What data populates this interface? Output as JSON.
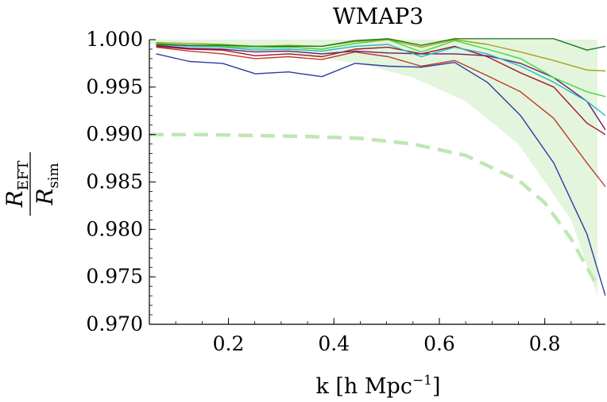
{
  "chart_data": {
    "type": "line",
    "title": "WMAP3",
    "xlabel_main": "k [h Mpc",
    "xlabel_sup": "−1",
    "xlabel_close": "]",
    "ylabel_num_main": "R",
    "ylabel_num_sub": "EFT",
    "ylabel_den_main": "R",
    "ylabel_den_sub": "sim",
    "xlim": [
      0.05,
      0.915
    ],
    "ylim": [
      0.97,
      1.0
    ],
    "x_ticks": [
      0.2,
      0.4,
      0.6,
      0.8
    ],
    "x_tick_labels": [
      "0.2",
      "0.4",
      "0.6",
      "0.8"
    ],
    "y_ticks": [
      0.97,
      0.975,
      0.98,
      0.985,
      0.99,
      0.995,
      1.0
    ],
    "y_tick_labels": [
      "0.970",
      "0.975",
      "0.980",
      "0.985",
      "0.990",
      "0.995",
      "1.000"
    ],
    "band": {
      "color": "#e3f5dd",
      "x": [
        0.05,
        0.25,
        0.45,
        0.55,
        0.65,
        0.75,
        0.85,
        0.9
      ],
      "upper": [
        1.0,
        1.0,
        1.0,
        1.0,
        1.0,
        1.0,
        1.0,
        1.0
      ],
      "lower": [
        0.9995,
        0.999,
        0.9975,
        0.996,
        0.9935,
        0.989,
        0.981,
        0.973
      ]
    },
    "dashed_curve": {
      "color": "#bfe6b4",
      "x": [
        0.05,
        0.15,
        0.25,
        0.35,
        0.45,
        0.55,
        0.65,
        0.75,
        0.8,
        0.85,
        0.9
      ],
      "y": [
        0.99,
        0.99,
        0.9899,
        0.9898,
        0.9896,
        0.989,
        0.9878,
        0.9852,
        0.9828,
        0.979,
        0.974
      ]
    },
    "series": [
      {
        "color": "#2f3a9e",
        "x": [
          0.063,
          0.126,
          0.189,
          0.251,
          0.314,
          0.377,
          0.44,
          0.503,
          0.566,
          0.629,
          0.691,
          0.754,
          0.817,
          0.88,
          0.915
        ],
        "y": [
          0.9985,
          0.9977,
          0.9975,
          0.9964,
          0.9966,
          0.9961,
          0.9975,
          0.9972,
          0.9971,
          0.9976,
          0.9955,
          0.992,
          0.987,
          0.9795,
          0.973
        ]
      },
      {
        "color": "#c0392b",
        "x": [
          0.063,
          0.126,
          0.189,
          0.251,
          0.314,
          0.377,
          0.44,
          0.503,
          0.566,
          0.629,
          0.691,
          0.754,
          0.817,
          0.88,
          0.915
        ],
        "y": [
          0.9992,
          0.9988,
          0.9985,
          0.998,
          0.9982,
          0.9979,
          0.9987,
          0.9982,
          0.9972,
          0.9978,
          0.9962,
          0.9945,
          0.9917,
          0.987,
          0.9845
        ]
      },
      {
        "color": "#a3141c",
        "x": [
          0.063,
          0.126,
          0.189,
          0.251,
          0.314,
          0.377,
          0.44,
          0.503,
          0.566,
          0.629,
          0.691,
          0.754,
          0.817,
          0.88,
          0.915
        ],
        "y": [
          0.9993,
          0.999,
          0.9989,
          0.9983,
          0.9985,
          0.9982,
          0.999,
          0.9992,
          0.9985,
          0.9993,
          0.9982,
          0.9965,
          0.995,
          0.9912,
          0.99
        ]
      },
      {
        "color": "#6a1b6e",
        "x": [
          0.063,
          0.126,
          0.189,
          0.251,
          0.314,
          0.377,
          0.44,
          0.503,
          0.566,
          0.629,
          0.691,
          0.754,
          0.817,
          0.88,
          0.915
        ],
        "y": [
          0.9994,
          0.9991,
          0.999,
          0.9987,
          0.9988,
          0.9985,
          0.9988,
          0.9986,
          0.9985,
          0.9985,
          0.9983,
          0.9975,
          0.996,
          0.9935,
          0.9905
        ]
      },
      {
        "color": "#2bb3c9",
        "x": [
          0.063,
          0.126,
          0.189,
          0.251,
          0.314,
          0.377,
          0.44,
          0.503,
          0.566,
          0.629,
          0.691,
          0.754,
          0.817,
          0.88,
          0.915
        ],
        "y": [
          0.9995,
          0.9993,
          0.9992,
          0.9989,
          0.999,
          0.9988,
          0.9993,
          0.9995,
          0.9982,
          0.9992,
          0.9985,
          0.9972,
          0.9955,
          0.9935,
          0.992
        ]
      },
      {
        "color": "#3cdc3c",
        "x": [
          0.063,
          0.126,
          0.189,
          0.251,
          0.314,
          0.377,
          0.44,
          0.503,
          0.566,
          0.629,
          0.691,
          0.754,
          0.817,
          0.88,
          0.915
        ],
        "y": [
          0.9996,
          0.9994,
          0.9993,
          0.9991,
          0.9992,
          0.999,
          0.9996,
          1.0,
          0.9987,
          0.9999,
          0.999,
          0.998,
          0.996,
          0.9945,
          0.994
        ]
      },
      {
        "color": "#a6a01e",
        "x": [
          0.063,
          0.126,
          0.189,
          0.251,
          0.314,
          0.377,
          0.44,
          0.503,
          0.566,
          0.629,
          0.691,
          0.754,
          0.817,
          0.88,
          0.915
        ],
        "y": [
          0.9997,
          0.9996,
          0.9995,
          0.9993,
          0.9994,
          0.9993,
          0.9998,
          1.0,
          0.9992,
          1.0,
          0.9995,
          0.9987,
          0.9978,
          0.9968,
          0.9967
        ]
      },
      {
        "color": "#1e7a1e",
        "x": [
          0.063,
          0.126,
          0.189,
          0.251,
          0.314,
          0.377,
          0.44,
          0.503,
          0.566,
          0.629,
          0.691,
          0.754,
          0.817,
          0.88,
          0.915
        ],
        "y": [
          0.9995,
          0.9994,
          0.9994,
          0.9993,
          0.9993,
          0.9993,
          0.9999,
          1.0001,
          0.9994,
          1.0001,
          1.0001,
          1.0001,
          1.0001,
          0.9989,
          0.9993
        ]
      }
    ]
  }
}
